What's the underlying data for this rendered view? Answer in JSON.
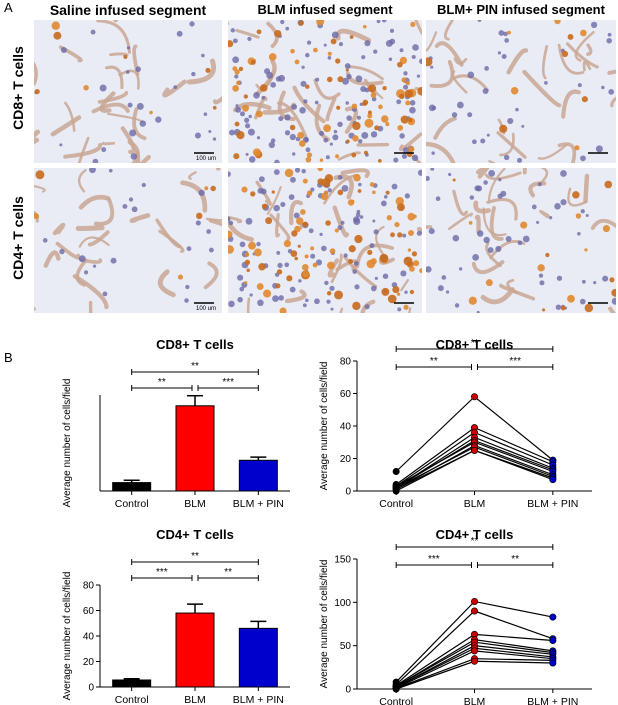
{
  "panel_a": {
    "letter": "A",
    "columns": [
      "Saline infused segment",
      "BLM infused segment",
      "BLM+ PIN infused segment"
    ],
    "rows": [
      "CD8+ T cells",
      "CD4+ T cells"
    ],
    "scale_label": "100 um"
  },
  "panel_b": {
    "letter": "B"
  },
  "chart_data": [
    {
      "type": "bar",
      "title": "CD8+ T cells",
      "ylabel": "Average number of cells/field",
      "categories": [
        "Control",
        "BLM",
        "BLM + PIN"
      ],
      "values": [
        3.5,
        35.5,
        12.8
      ],
      "errors": [
        1.0,
        4.2,
        1.3
      ],
      "colors": [
        "#000000",
        "#ff0000",
        "#0000cc"
      ],
      "ylim": [
        0,
        40
      ],
      "yticks": [],
      "significance": [
        {
          "from": 0,
          "to": 2,
          "label": "**"
        },
        {
          "from": 0,
          "to": 1,
          "label": "**"
        },
        {
          "from": 1,
          "to": 2,
          "label": "***"
        }
      ]
    },
    {
      "type": "line",
      "title": "CD8+ T cells",
      "ylabel": "Average number of cells/field",
      "categories": [
        "Control",
        "BLM",
        "BLM + PIN"
      ],
      "ylim": [
        0,
        80
      ],
      "yticks": [
        "0",
        "20",
        "40",
        "60",
        "80"
      ],
      "series": [
        {
          "values": [
            12,
            58,
            19
          ]
        },
        {
          "values": [
            4,
            39,
            18
          ]
        },
        {
          "values": [
            3,
            36,
            16
          ]
        },
        {
          "values": [
            2,
            33,
            14
          ]
        },
        {
          "values": [
            2,
            31,
            13
          ]
        },
        {
          "values": [
            3,
            30,
            12
          ]
        },
        {
          "values": [
            1,
            28,
            10
          ]
        },
        {
          "values": [
            2,
            27,
            9
          ]
        },
        {
          "values": [
            1,
            25,
            8
          ]
        },
        {
          "values": [
            0,
            25,
            7
          ]
        }
      ],
      "point_colors": [
        "#000000",
        "#cc0000",
        "#0000cc"
      ],
      "significance": [
        {
          "from": 0,
          "to": 2,
          "label": "**"
        },
        {
          "from": 0,
          "to": 1,
          "label": "**"
        },
        {
          "from": 1,
          "to": 2,
          "label": "***"
        }
      ]
    },
    {
      "type": "bar",
      "title": "CD4+ T cells",
      "ylabel": "Average number of cells/field",
      "categories": [
        "Control",
        "BLM",
        "BLM + PIN"
      ],
      "values": [
        5.5,
        58,
        46
      ],
      "errors": [
        1.0,
        7.0,
        5.5
      ],
      "colors": [
        "#000000",
        "#ff0000",
        "#0000cc"
      ],
      "ylim": [
        0,
        80
      ],
      "yticks": [
        "0",
        "20",
        "40",
        "60",
        "80"
      ],
      "significance": [
        {
          "from": 0,
          "to": 2,
          "label": "**"
        },
        {
          "from": 0,
          "to": 1,
          "label": "***"
        },
        {
          "from": 1,
          "to": 2,
          "label": "**"
        }
      ]
    },
    {
      "type": "line",
      "title": "CD4+ T cells",
      "ylabel": "Average number of cells/field",
      "categories": [
        "Control",
        "BLM",
        "BLM + PIN"
      ],
      "ylim": [
        0,
        150
      ],
      "yticks": [
        "0",
        "50",
        "100",
        "150"
      ],
      "series": [
        {
          "values": [
            8,
            101,
            83
          ]
        },
        {
          "values": [
            5,
            90,
            58
          ]
        },
        {
          "values": [
            4,
            63,
            56
          ]
        },
        {
          "values": [
            3,
            57,
            44
          ]
        },
        {
          "values": [
            3,
            54,
            42
          ]
        },
        {
          "values": [
            2,
            50,
            40
          ]
        },
        {
          "values": [
            2,
            47,
            37
          ]
        },
        {
          "values": [
            1,
            44,
            35
          ]
        },
        {
          "values": [
            1,
            35,
            33
          ]
        },
        {
          "values": [
            0,
            32,
            30
          ]
        }
      ],
      "point_colors": [
        "#000000",
        "#cc0000",
        "#0000cc"
      ],
      "significance": [
        {
          "from": 0,
          "to": 2,
          "label": "**"
        },
        {
          "from": 0,
          "to": 1,
          "label": "***"
        },
        {
          "from": 1,
          "to": 2,
          "label": "**"
        }
      ]
    }
  ]
}
